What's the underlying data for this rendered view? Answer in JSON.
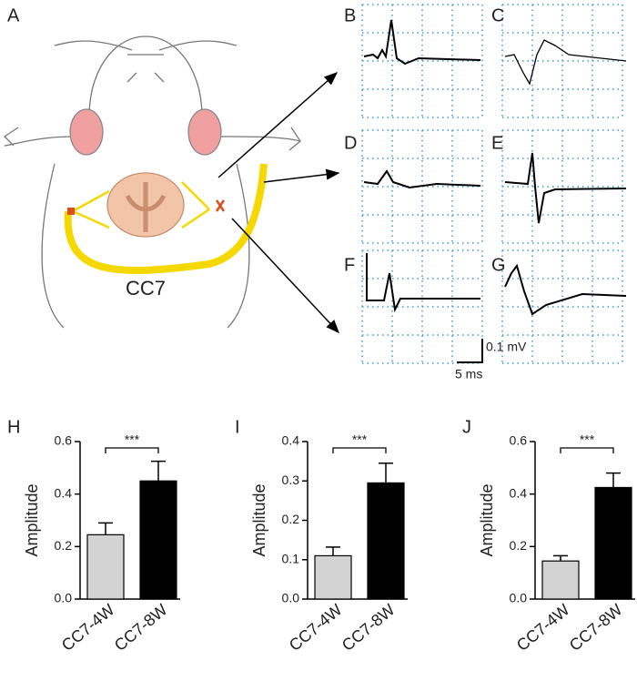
{
  "figure": {
    "panel_labels": [
      "A",
      "B",
      "C",
      "D",
      "E",
      "F",
      "G"
    ],
    "nerve_label": "CC7",
    "scale_voltage": "0.1 mV",
    "scale_time": "5 ms"
  },
  "chart_data": [
    {
      "type": "bar",
      "panel": "H",
      "y_label": "Amplitude",
      "categories": [
        "CC7-4W",
        "CC7-8W"
      ],
      "values": [
        0.245,
        0.45
      ],
      "errors": [
        0.045,
        0.075
      ],
      "colors": [
        "#d3d3d3",
        "#000000"
      ],
      "ylim": [
        0,
        0.6
      ],
      "yticks": [
        {
          "value": 0,
          "label": "0.0"
        },
        0.2,
        0.4,
        0.6
      ],
      "significance": "***"
    },
    {
      "type": "bar",
      "panel": "I",
      "y_label": "Amplitude",
      "categories": [
        "CC7-4W",
        "CC7-8W"
      ],
      "values": [
        0.11,
        0.295
      ],
      "errors": [
        0.022,
        0.05
      ],
      "colors": [
        "#d3d3d3",
        "#000000"
      ],
      "ylim": [
        0,
        0.4
      ],
      "yticks": [
        {
          "value": 0,
          "label": "0.0"
        },
        0.1,
        0.2,
        0.3,
        0.4
      ],
      "significance": "***"
    },
    {
      "type": "bar",
      "panel": "J",
      "y_label": "Amplitude",
      "categories": [
        "CC7-4W",
        "CC7-8W"
      ],
      "values": [
        0.145,
        0.425
      ],
      "errors": [
        0.02,
        0.055
      ],
      "colors": [
        "#d3d3d3",
        "#000000"
      ],
      "ylim": [
        0,
        0.6
      ],
      "yticks": [
        {
          "value": 0,
          "label": "0.0"
        },
        0.2,
        0.4,
        0.6
      ],
      "significance": "***"
    }
  ]
}
